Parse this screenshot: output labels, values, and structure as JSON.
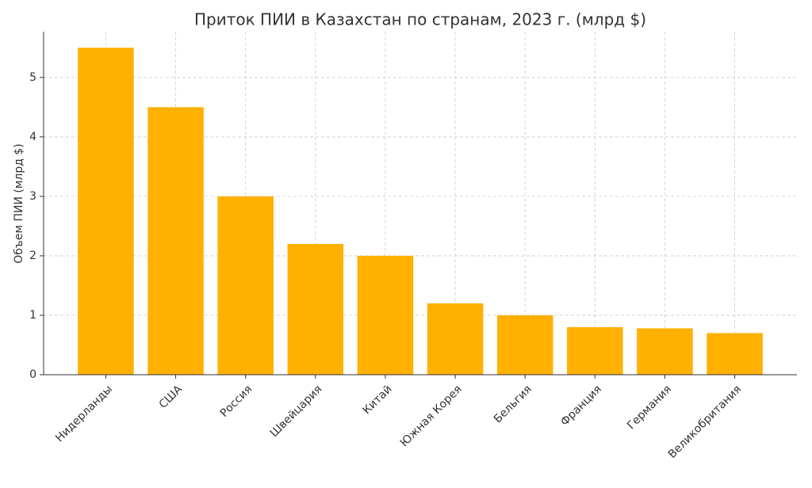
{
  "chart_data": {
    "type": "bar",
    "title": "Приток ПИИ в Казахстан по странам, 2023 г. (млрд $)",
    "y_label": "Объем ПИИ (млрд $)",
    "categories": [
      "Нидерланды",
      "США",
      "Россия",
      "Швейцария",
      "Китай",
      "Южная Корея",
      "Бельгия",
      "Франция",
      "Германия",
      "Великобритания"
    ],
    "values": [
      5.5,
      4.5,
      3.0,
      2.2,
      2.0,
      1.2,
      1.0,
      0.8,
      0.78,
      0.7
    ],
    "color": "#ffb000",
    "ylim": [
      0,
      5.77
    ],
    "yticks": [
      0,
      1,
      2,
      3,
      4,
      5
    ],
    "grid": true
  }
}
